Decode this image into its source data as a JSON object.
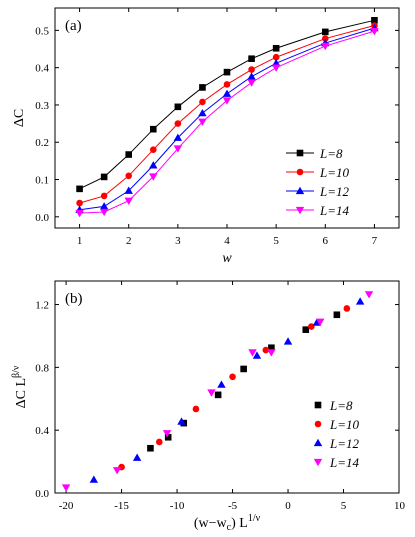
{
  "chart_data": [
    {
      "type": "line",
      "panel_label": "(a)",
      "ylabel": "ΔC",
      "xlabel": "w",
      "xlim": [
        0.5,
        7.5
      ],
      "ylim": [
        -0.03,
        0.56
      ],
      "xticks": [
        1,
        2,
        3,
        4,
        5,
        6,
        7
      ],
      "yticks": [
        0.0,
        0.1,
        0.2,
        0.3,
        0.4,
        0.5
      ],
      "ytick_labels": [
        "0.0",
        "0.1",
        "0.2",
        "0.3",
        "0.4",
        "0.5"
      ],
      "legend_position": "center-right",
      "series": [
        {
          "name": "L=8",
          "color": "#000000",
          "marker": "square",
          "x": [
            1,
            1.5,
            2,
            2.5,
            3,
            3.5,
            4,
            4.5,
            5,
            6,
            7
          ],
          "y": [
            0.075,
            0.107,
            0.167,
            0.235,
            0.295,
            0.347,
            0.388,
            0.424,
            0.452,
            0.496,
            0.527
          ]
        },
        {
          "name": "L=10",
          "color": "#ff0000",
          "marker": "circle",
          "x": [
            1,
            1.5,
            2,
            2.5,
            3,
            3.5,
            4,
            4.5,
            5,
            6,
            7
          ],
          "y": [
            0.037,
            0.056,
            0.11,
            0.18,
            0.25,
            0.308,
            0.355,
            0.395,
            0.428,
            0.478,
            0.513
          ]
        },
        {
          "name": "L=12",
          "color": "#0000ff",
          "marker": "triangle-up",
          "x": [
            1,
            1.5,
            2,
            2.5,
            3,
            3.5,
            4,
            4.5,
            5,
            6,
            7
          ],
          "y": [
            0.019,
            0.028,
            0.07,
            0.138,
            0.212,
            0.278,
            0.33,
            0.376,
            0.412,
            0.466,
            0.506
          ]
        },
        {
          "name": "L=14",
          "color": "#ff00ff",
          "marker": "triangle-down",
          "x": [
            1,
            1.5,
            2,
            2.5,
            3,
            3.5,
            4,
            4.5,
            5,
            6,
            7
          ],
          "y": [
            0.01,
            0.013,
            0.043,
            0.108,
            0.183,
            0.255,
            0.312,
            0.36,
            0.4,
            0.458,
            0.498
          ]
        }
      ]
    },
    {
      "type": "scatter",
      "panel_label": "(b)",
      "ylabel_main": "ΔC L",
      "ylabel_exp": "β/ν",
      "xlabel_main": "(w−w",
      "xlabel_sub": "c",
      "xlabel_mid": ") L",
      "xlabel_exp": "1/ν",
      "xlim": [
        -21,
        10
      ],
      "ylim": [
        0.0,
        1.35
      ],
      "xticks": [
        -20,
        -15,
        -10,
        -5,
        0,
        5,
        10
      ],
      "xtick_labels": [
        "-20",
        "-15",
        "-10",
        "-5",
        "0",
        "5",
        "10"
      ],
      "yticks": [
        0.0,
        0.4,
        0.8,
        1.2
      ],
      "ytick_labels": [
        "0.0",
        "0.4",
        "0.8",
        "1.2"
      ],
      "legend_position": "lower-right",
      "series": [
        {
          "name": "L=8",
          "color": "#000000",
          "marker": "square",
          "x": [
            -12.4,
            -10.8,
            -9.4,
            -6.3,
            -4.0,
            -1.5,
            1.6,
            4.4
          ],
          "y": [
            0.285,
            0.355,
            0.445,
            0.625,
            0.79,
            0.925,
            1.04,
            1.135
          ]
        },
        {
          "name": "L=10",
          "color": "#ff0000",
          "marker": "circle",
          "x": [
            -15.0,
            -11.6,
            -8.3,
            -5.0,
            -2.0,
            2.1,
            5.3
          ],
          "y": [
            0.165,
            0.325,
            0.535,
            0.74,
            0.91,
            1.06,
            1.175
          ]
        },
        {
          "name": "L=12",
          "color": "#0000ff",
          "marker": "triangle-up",
          "x": [
            -17.5,
            -13.6,
            -9.6,
            -6.0,
            -2.8,
            0.0,
            2.6,
            6.5
          ],
          "y": [
            0.085,
            0.225,
            0.455,
            0.69,
            0.875,
            0.965,
            1.085,
            1.22
          ]
        },
        {
          "name": "L=14",
          "color": "#ff00ff",
          "marker": "triangle-down",
          "x": [
            -20.0,
            -15.4,
            -10.9,
            -6.9,
            -3.2,
            -1.5,
            2.9,
            7.3
          ],
          "y": [
            0.035,
            0.145,
            0.38,
            0.64,
            0.895,
            0.895,
            1.09,
            1.265
          ]
        }
      ]
    }
  ]
}
